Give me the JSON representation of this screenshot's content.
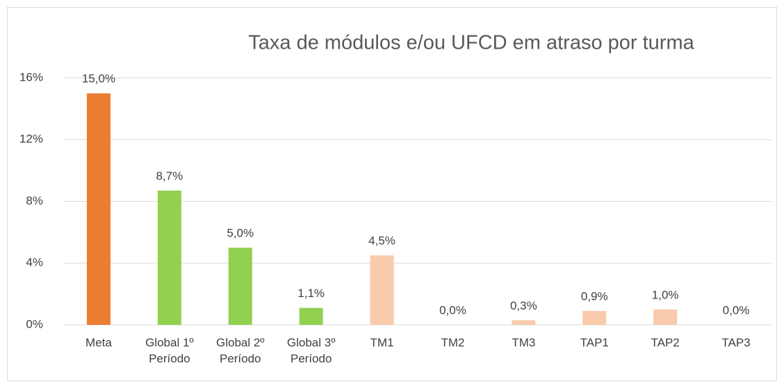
{
  "chart_data": {
    "type": "bar",
    "title": "Taxa de módulos e/ou UFCD em atraso por turma",
    "categories": [
      "Meta",
      "Global 1º Período",
      "Global 2º Período",
      "Global 3º Período",
      "TM1",
      "TM2",
      "TM3",
      "TAP1",
      "TAP2",
      "TAP3"
    ],
    "values": [
      15.0,
      8.7,
      5.0,
      1.1,
      4.5,
      0.0,
      0.3,
      0.9,
      1.0,
      0.0
    ],
    "value_labels": [
      "15,0%",
      "8,7%",
      "5,0%",
      "1,1%",
      "4,5%",
      "0,0%",
      "0,3%",
      "0,9%",
      "1,0%",
      "0,0%"
    ],
    "colors": [
      "#ed7d31",
      "#92d050",
      "#92d050",
      "#92d050",
      "#f8cbad",
      "#f8cbad",
      "#f8cbad",
      "#f8cbad",
      "#f8cbad",
      "#f8cbad"
    ],
    "ylim": [
      0,
      16
    ],
    "yticks": [
      {
        "value": 0,
        "label": "0%"
      },
      {
        "value": 4,
        "label": "4%"
      },
      {
        "value": 8,
        "label": "8%"
      },
      {
        "value": 12,
        "label": "12%"
      },
      {
        "value": 16,
        "label": "16%"
      }
    ],
    "grid": true
  }
}
